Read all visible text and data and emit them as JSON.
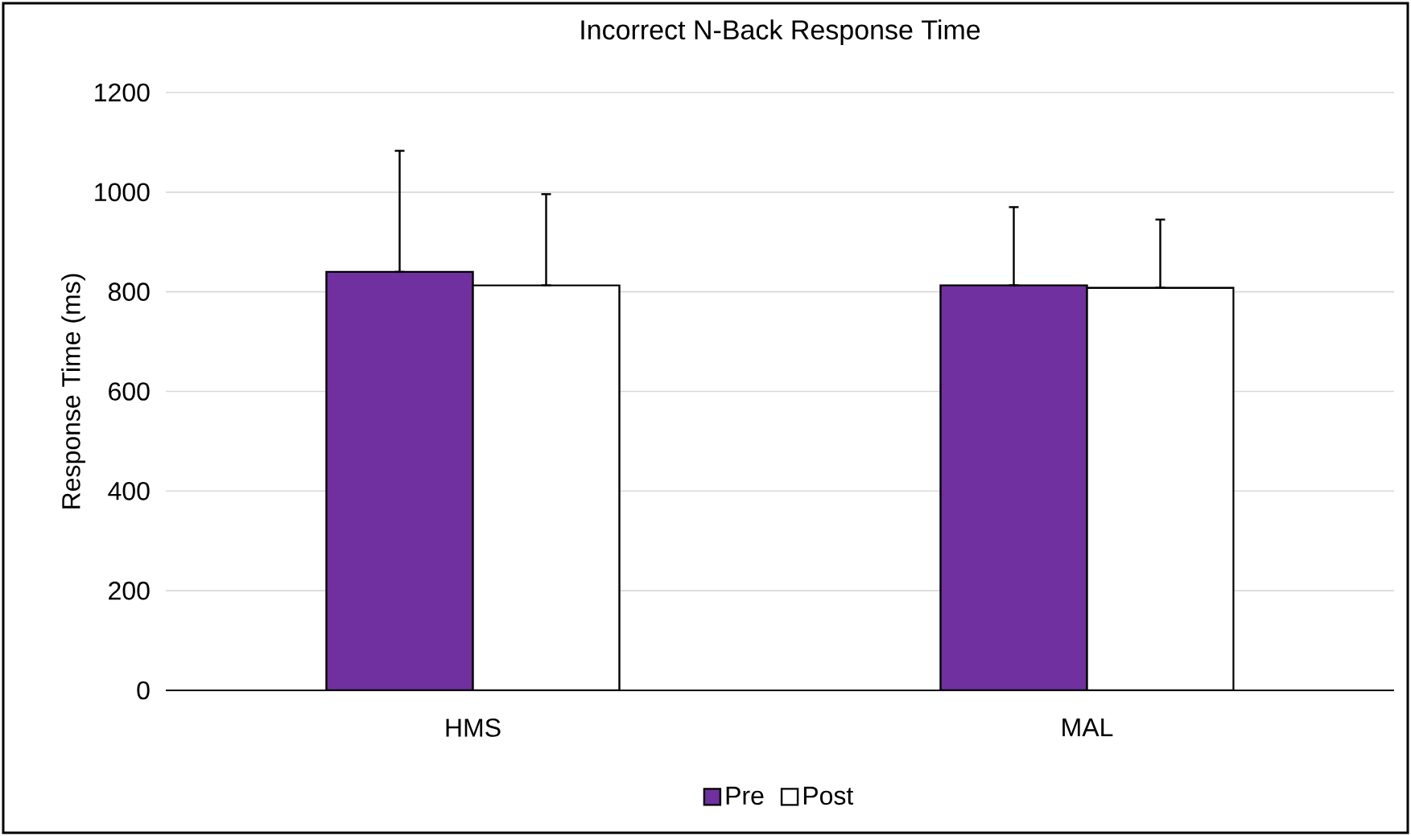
{
  "chart_data": {
    "type": "bar",
    "title": "Incorrect N-Back Response Time",
    "ylabel": "Response Time (ms)",
    "categories": [
      "HMS",
      "MAL"
    ],
    "series": [
      {
        "name": "Pre",
        "color": "#7030a0",
        "values": [
          840,
          813
        ],
        "errors": [
          [
            840,
            1083
          ],
          [
            813,
            970
          ]
        ]
      },
      {
        "name": "Post",
        "color": "#ffffff",
        "values": [
          813,
          808
        ],
        "errors": [
          [
            813,
            996
          ],
          [
            808,
            945
          ]
        ]
      }
    ],
    "ylim": [
      0,
      1200
    ],
    "yticks": [
      0,
      200,
      400,
      600,
      800,
      1000,
      1200
    ],
    "grid": "y",
    "legend": "bottom"
  }
}
